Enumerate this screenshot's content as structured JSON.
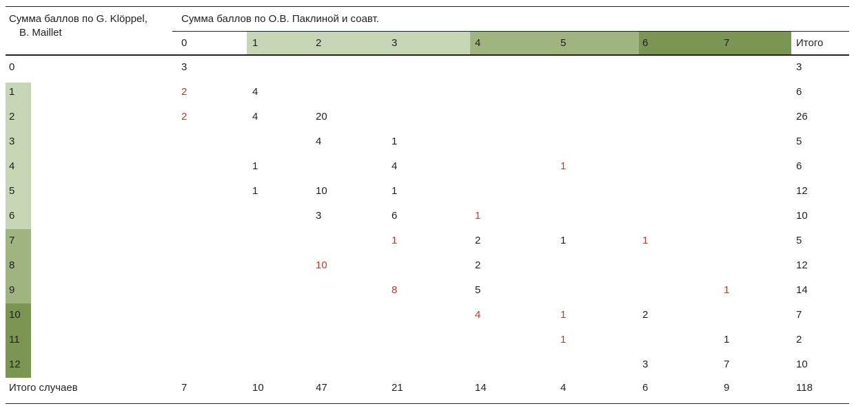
{
  "colors": {
    "light": "#c6d5b4",
    "mid": "#9fb47f",
    "dark": "#7a9652",
    "highlight_text": "#c0392b"
  },
  "table": {
    "row_header": "Сумма баллов по G. Klöppel,",
    "row_header_2": "B. Maillet",
    "col_group_header": "Сумма баллов по О.В. Паклиной и соавт.",
    "columns": [
      "0",
      "1",
      "2",
      "3",
      "4",
      "5",
      "6",
      "7",
      "Итого"
    ],
    "column_shading": [
      "none",
      "light",
      "light",
      "light",
      "mid",
      "mid",
      "dark",
      "dark",
      "none"
    ],
    "rows": [
      {
        "label": "0",
        "shade": "none",
        "cells": [
          "3",
          "",
          "",
          "",
          "",
          "",
          "",
          "",
          "3"
        ],
        "red": []
      },
      {
        "label": "1",
        "shade": "light",
        "cells": [
          "2",
          "4",
          "",
          "",
          "",
          "",
          "",
          "",
          "6"
        ],
        "red": [
          0
        ]
      },
      {
        "label": "2",
        "shade": "light",
        "cells": [
          "2",
          "4",
          "20",
          "",
          "",
          "",
          "",
          "",
          "26"
        ],
        "red": [
          0
        ]
      },
      {
        "label": "3",
        "shade": "light",
        "cells": [
          "",
          "",
          "4",
          "1",
          "",
          "",
          "",
          "",
          "5"
        ],
        "red": []
      },
      {
        "label": "4",
        "shade": "light",
        "cells": [
          "",
          "1",
          "",
          "4",
          "",
          "1",
          "",
          "",
          "6"
        ],
        "red": [
          5
        ]
      },
      {
        "label": "5",
        "shade": "light",
        "cells": [
          "",
          "1",
          "10",
          "1",
          "",
          "",
          "",
          "",
          "12"
        ],
        "red": []
      },
      {
        "label": "6",
        "shade": "light",
        "cells": [
          "",
          "",
          "3",
          "6",
          "1",
          "",
          "",
          "",
          "10"
        ],
        "red": [
          4
        ]
      },
      {
        "label": "7",
        "shade": "mid",
        "cells": [
          "",
          "",
          "",
          "1",
          "2",
          "1",
          "1",
          "",
          "5"
        ],
        "red": [
          3,
          6
        ]
      },
      {
        "label": "8",
        "shade": "mid",
        "cells": [
          "",
          "",
          "10",
          "",
          "2",
          "",
          "",
          "",
          "12"
        ],
        "red": [
          2
        ]
      },
      {
        "label": "9",
        "shade": "mid",
        "cells": [
          "",
          "",
          "",
          "8",
          "5",
          "",
          "",
          "1",
          "14"
        ],
        "red": [
          3,
          7
        ]
      },
      {
        "label": "10",
        "shade": "dark",
        "cells": [
          "",
          "",
          "",
          "",
          "4",
          "1",
          "2",
          "",
          "7"
        ],
        "red": [
          4,
          5
        ]
      },
      {
        "label": "11",
        "shade": "dark",
        "cells": [
          "",
          "",
          "",
          "",
          "",
          "1",
          "",
          "1",
          "2"
        ],
        "red": [
          5
        ]
      },
      {
        "label": "12",
        "shade": "dark",
        "cells": [
          "",
          "",
          "",
          "",
          "",
          "",
          "3",
          "7",
          "10"
        ],
        "red": []
      }
    ],
    "total_row": {
      "label": "Итого случаев",
      "cells": [
        "7",
        "10",
        "47",
        "21",
        "14",
        "4",
        "6",
        "9",
        "118"
      ]
    }
  }
}
